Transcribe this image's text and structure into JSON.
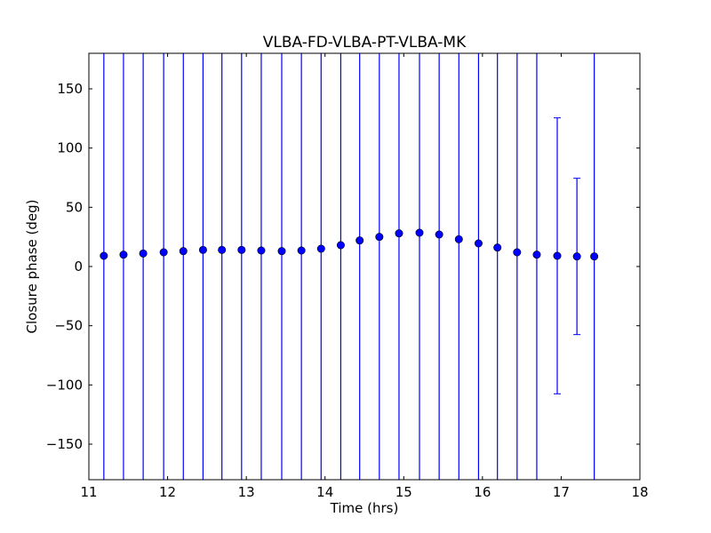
{
  "chart_data": {
    "type": "scatter",
    "title": "VLBA-FD-VLBA-PT-VLBA-MK",
    "xlabel": "Time (hrs)",
    "ylabel": "Closure phase (deg)",
    "xlim": [
      11,
      18
    ],
    "ylim": [
      -180,
      180
    ],
    "xticks": [
      11,
      12,
      13,
      14,
      15,
      16,
      17,
      18
    ],
    "xtick_labels": [
      "11",
      "12",
      "13",
      "14",
      "15",
      "16",
      "17",
      "18"
    ],
    "yticks": [
      -150,
      -100,
      -50,
      0,
      50,
      100,
      150
    ],
    "ytick_labels": [
      "−150",
      "−100",
      "−50",
      "0",
      "50",
      "100",
      "150"
    ],
    "grid": false,
    "color": "#0000ff",
    "series": [
      {
        "name": "closure phase",
        "x": [
          11.19,
          11.44,
          11.69,
          11.95,
          12.2,
          12.45,
          12.69,
          12.94,
          13.19,
          13.45,
          13.7,
          13.95,
          14.2,
          14.44,
          14.69,
          14.94,
          15.2,
          15.45,
          15.7,
          15.95,
          16.19,
          16.44,
          16.69,
          16.95,
          17.2,
          17.42
        ],
        "y": [
          9,
          10,
          11,
          12,
          13,
          14,
          14,
          14,
          13.5,
          13,
          13.5,
          15,
          18,
          22,
          25,
          28,
          28.5,
          27,
          23,
          19.5,
          16,
          12,
          10,
          9,
          8.5,
          8.5
        ],
        "yerr": [
          400,
          400,
          400,
          400,
          400,
          400,
          400,
          400,
          400,
          400,
          400,
          400,
          400,
          400,
          400,
          400,
          400,
          400,
          400,
          400,
          400,
          400,
          400,
          116.5,
          66,
          400
        ]
      }
    ]
  }
}
